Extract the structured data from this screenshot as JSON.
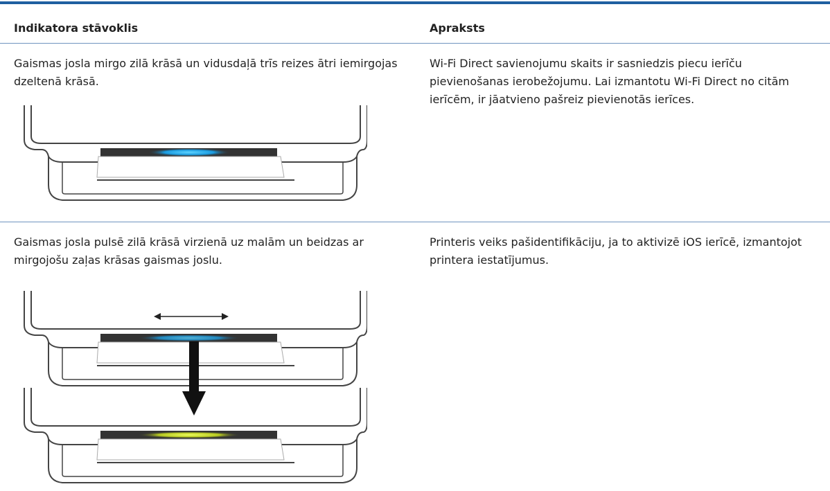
{
  "table": {
    "header": [
      "Indikatora stāvoklis",
      "Apraksts"
    ],
    "rows": [
      [
        "Gaismas josla mirgo zilā krāsā un vidusdaļā trīs reizes ātri iemirgojas dzeltenā krāsā.",
        "Wi-Fi Direct savienojumu skaits ir sasniedzis piecu ierīču pievienošanas ierobežojumu. Lai izmantotu Wi-Fi Direct no citām ierīcēm, ir jāatvieno pašreiz pievienotās ierīces."
      ],
      [
        "Gaismas josla pulsē zilā krāsā virzienā uz malām un beidzas ar mirgojošu zaļas krāsas gaismas joslu.",
        "Printeris veiks pašidentifikāciju, ja to aktivizē iOS ierīcē, izmantojot printera iestatījumus."
      ]
    ]
  }
}
